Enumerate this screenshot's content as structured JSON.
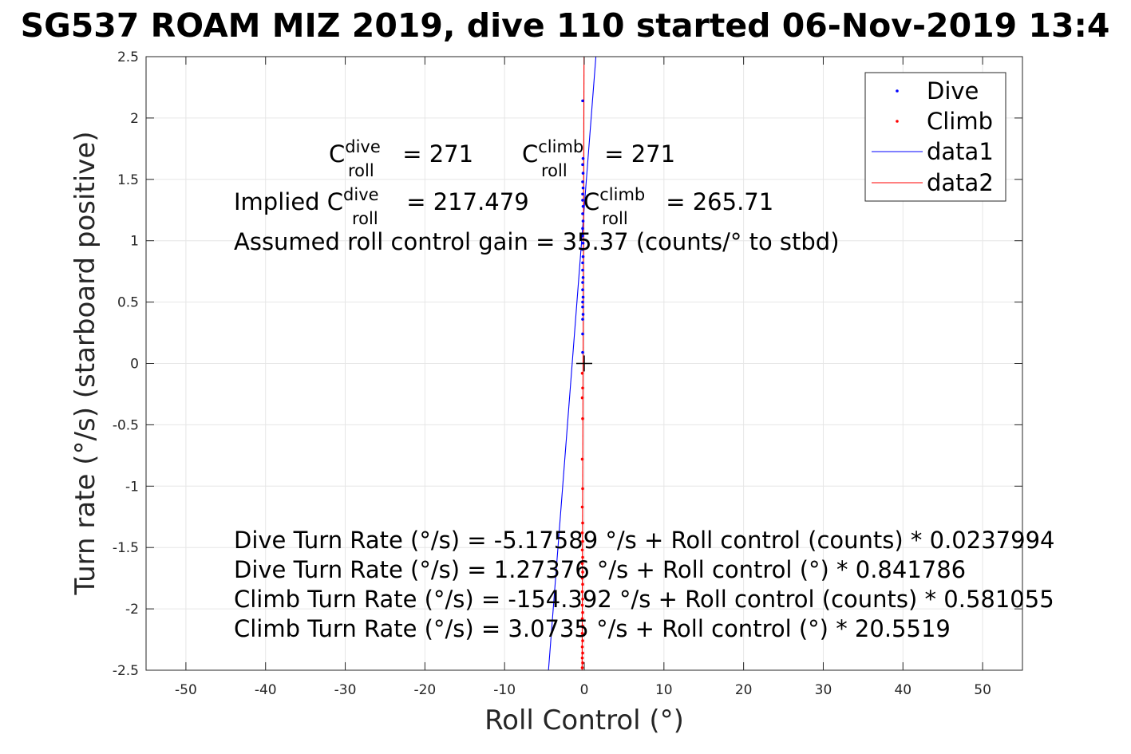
{
  "chart_data": {
    "type": "scatter",
    "title": "SG537 ROAM MIZ 2019, dive 110 started 06-Nov-2019 13:4",
    "xlabel": "Roll Control (°)",
    "ylabel": "Turn rate (°/s) (starboard positive)",
    "xlim": [
      -55,
      55
    ],
    "ylim": [
      -2.5,
      2.5
    ],
    "x_ticks": [
      -50,
      -40,
      -30,
      -20,
      -10,
      0,
      10,
      20,
      30,
      40,
      50
    ],
    "y_ticks": [
      -2.5,
      -2,
      -1.5,
      -1,
      -0.5,
      0,
      0.5,
      1,
      1.5,
      2,
      2.5
    ],
    "x_tick_labels": [
      "-50",
      "-40",
      "-30",
      "-20",
      "-10",
      "0",
      "10",
      "20",
      "30",
      "40",
      "50"
    ],
    "y_tick_labels": [
      "-2.5",
      "-2",
      "-1.5",
      "-1",
      "-0.5",
      "0",
      "0.5",
      "1",
      "1.5",
      "2",
      "2.5"
    ],
    "grid": true,
    "legend_position": "top-right",
    "colors": {
      "dive": "#0000ff",
      "climb": "#ff0000",
      "axes": "#262626",
      "grid": "#e6e6e6"
    },
    "series": [
      {
        "name": "Dive",
        "style": "points",
        "color": "#0000ff",
        "points": [
          [
            -0.2,
            2.14
          ],
          [
            -0.15,
            1.67
          ],
          [
            -0.2,
            1.62
          ],
          [
            -0.15,
            1.55
          ],
          [
            -0.2,
            1.48
          ],
          [
            -0.15,
            1.43
          ],
          [
            -0.2,
            1.38
          ],
          [
            -0.2,
            1.33
          ],
          [
            -0.15,
            1.28
          ],
          [
            -0.2,
            1.22
          ],
          [
            -0.15,
            1.16
          ],
          [
            -0.2,
            1.1
          ],
          [
            -0.2,
            1.04
          ],
          [
            -0.15,
            0.98
          ],
          [
            -0.2,
            0.93
          ],
          [
            -0.15,
            0.87
          ],
          [
            -0.2,
            0.82
          ],
          [
            -0.2,
            0.76
          ],
          [
            -0.15,
            0.7
          ],
          [
            -0.2,
            0.66
          ],
          [
            -0.2,
            0.6
          ],
          [
            -0.15,
            0.54
          ],
          [
            -0.2,
            0.5
          ],
          [
            -0.2,
            0.46
          ],
          [
            -0.15,
            0.4
          ],
          [
            -0.2,
            0.36
          ],
          [
            -0.2,
            0.24
          ],
          [
            -0.2,
            0.09
          ]
        ]
      },
      {
        "name": "Climb",
        "style": "points",
        "color": "#ff0000",
        "points": [
          [
            -0.25,
            -0.08
          ],
          [
            -0.2,
            -0.2
          ],
          [
            -0.25,
            -0.28
          ],
          [
            -0.2,
            -0.45
          ],
          [
            -0.25,
            -0.78
          ],
          [
            -0.2,
            -1.02
          ],
          [
            -0.25,
            -1.17
          ],
          [
            -0.2,
            -1.3
          ],
          [
            -0.25,
            -1.38
          ],
          [
            -0.2,
            -1.45
          ],
          [
            -0.25,
            -1.52
          ],
          [
            -0.2,
            -1.58
          ],
          [
            -0.25,
            -1.63
          ],
          [
            -0.2,
            -1.7
          ],
          [
            -0.25,
            -1.75
          ],
          [
            -0.2,
            -1.8
          ],
          [
            -0.25,
            -1.86
          ],
          [
            -0.2,
            -1.92
          ],
          [
            -0.25,
            -1.97
          ],
          [
            -0.2,
            -2.03
          ],
          [
            -0.25,
            -2.08
          ],
          [
            -0.2,
            -2.14
          ],
          [
            -0.25,
            -2.2
          ],
          [
            -0.2,
            -2.26
          ],
          [
            -0.25,
            -2.31
          ],
          [
            -0.2,
            -2.36
          ],
          [
            -0.25,
            -2.4
          ],
          [
            -0.2,
            -2.44
          ],
          [
            -0.25,
            -2.48
          ]
        ]
      },
      {
        "name": "data1",
        "style": "line",
        "color": "#0000ff",
        "points": [
          [
            -4.49,
            -2.5
          ],
          [
            1.46,
            2.5
          ]
        ]
      },
      {
        "name": "data2",
        "style": "line",
        "color": "#ff0000",
        "points": [
          [
            -0.27,
            -2.5
          ],
          [
            -0.03,
            2.5
          ]
        ]
      }
    ],
    "origin_marker": {
      "x": 0,
      "y": 0
    },
    "annotations": {
      "c_dive": {
        "base": "C",
        "sup": "dive",
        "sub": "roll",
        "value": " = 271"
      },
      "c_climb": {
        "base": "C",
        "sup": "climb",
        "sub": "roll",
        "value": " = 271"
      },
      "implied_dive": {
        "prefix": "Implied ",
        "base": "C",
        "sup": "dive",
        "sub": "roll",
        "value": " = 217.479"
      },
      "implied_climb": {
        "base": "C",
        "sup": "climb",
        "sub": "roll",
        "value": " = 265.71"
      },
      "gain": "Assumed roll control gain = 35.37 (counts/° to stbd)",
      "fits": [
        "Dive Turn Rate (°/s) = -5.17589 °/s + Roll control (counts) * 0.0237994",
        "Dive Turn Rate (°/s) = 1.27376 °/s + Roll control (°) * 0.841786",
        "Climb Turn Rate (°/s) = -154.392 °/s + Roll control (counts) * 0.581055",
        "Climb Turn Rate (°/s) = 3.0735 °/s + Roll control (°) * 20.5519"
      ]
    }
  }
}
